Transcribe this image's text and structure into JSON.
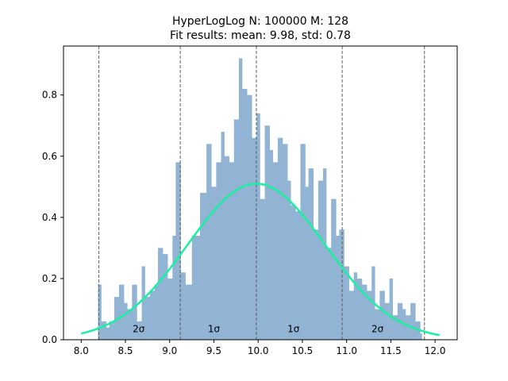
{
  "chart_data": {
    "type": "histogram",
    "title": "HyperLogLog N: 100000 M: 128",
    "subtitle": "Fit results: mean: 9.98,  std: 0.78",
    "xlabel": "",
    "ylabel": "",
    "xlim": [
      7.8,
      12.25
    ],
    "ylim": [
      0,
      0.96
    ],
    "xticks": [
      8.0,
      8.5,
      9.0,
      9.5,
      10.0,
      10.5,
      11.0,
      11.5,
      12.0
    ],
    "yticks": [
      0.0,
      0.2,
      0.4,
      0.6,
      0.8
    ],
    "grid": false,
    "legend": "none",
    "bins": {
      "start": 8.19,
      "end": 11.85,
      "count": 200
    },
    "histogram_heights_sampled": [
      [
        8.2,
        0.18
      ],
      [
        8.25,
        0.06
      ],
      [
        8.3,
        0.04
      ],
      [
        8.35,
        0.06
      ],
      [
        8.4,
        0.14
      ],
      [
        8.45,
        0.18
      ],
      [
        8.5,
        0.12
      ],
      [
        8.55,
        0.1
      ],
      [
        8.6,
        0.18
      ],
      [
        8.65,
        0.06
      ],
      [
        8.7,
        0.24
      ],
      [
        8.75,
        0.14
      ],
      [
        8.8,
        0.16
      ],
      [
        8.85,
        0.18
      ],
      [
        8.9,
        0.3
      ],
      [
        8.95,
        0.28
      ],
      [
        9.0,
        0.2
      ],
      [
        9.05,
        0.34
      ],
      [
        9.1,
        0.58
      ],
      [
        9.15,
        0.22
      ],
      [
        9.2,
        0.18
      ],
      [
        9.3,
        0.34
      ],
      [
        9.4,
        0.48
      ],
      [
        9.45,
        0.64
      ],
      [
        9.5,
        0.5
      ],
      [
        9.55,
        0.58
      ],
      [
        9.6,
        0.68
      ],
      [
        9.65,
        0.6
      ],
      [
        9.7,
        0.58
      ],
      [
        9.75,
        0.72
      ],
      [
        9.8,
        0.92
      ],
      [
        9.85,
        0.82
      ],
      [
        9.9,
        0.8
      ],
      [
        9.95,
        0.66
      ],
      [
        10.0,
        0.74
      ],
      [
        10.05,
        0.46
      ],
      [
        10.1,
        0.7
      ],
      [
        10.15,
        0.62
      ],
      [
        10.2,
        0.58
      ],
      [
        10.25,
        0.66
      ],
      [
        10.3,
        0.64
      ],
      [
        10.35,
        0.52
      ],
      [
        10.4,
        0.44
      ],
      [
        10.45,
        0.42
      ],
      [
        10.5,
        0.64
      ],
      [
        10.55,
        0.5
      ],
      [
        10.6,
        0.56
      ],
      [
        10.65,
        0.36
      ],
      [
        10.7,
        0.52
      ],
      [
        10.75,
        0.56
      ],
      [
        10.8,
        0.3
      ],
      [
        10.85,
        0.46
      ],
      [
        10.9,
        0.34
      ],
      [
        10.95,
        0.36
      ],
      [
        11.0,
        0.24
      ],
      [
        11.05,
        0.16
      ],
      [
        11.1,
        0.22
      ],
      [
        11.15,
        0.2
      ],
      [
        11.2,
        0.18
      ],
      [
        11.25,
        0.16
      ],
      [
        11.3,
        0.24
      ],
      [
        11.35,
        0.1
      ],
      [
        11.4,
        0.16
      ],
      [
        11.45,
        0.12
      ],
      [
        11.5,
        0.2
      ],
      [
        11.55,
        0.08
      ],
      [
        11.6,
        0.12
      ],
      [
        11.65,
        0.1
      ],
      [
        11.7,
        0.08
      ],
      [
        11.75,
        0.12
      ],
      [
        11.8,
        0.06
      ],
      [
        11.85,
        0.02
      ]
    ],
    "fit_curve": {
      "type": "normal_pdf",
      "mean": 9.98,
      "std": 0.78,
      "x_range": [
        8.0,
        12.05
      ],
      "color": "#19f0a0"
    },
    "vlines": [
      8.2,
      9.12,
      9.98,
      10.95,
      11.88
    ],
    "band_labels": [
      {
        "text": "2σ",
        "x": 8.65,
        "y": 0.025
      },
      {
        "text": "1σ",
        "x": 9.5,
        "y": 0.025
      },
      {
        "text": "1σ",
        "x": 10.4,
        "y": 0.025
      },
      {
        "text": "2σ",
        "x": 11.35,
        "y": 0.025
      }
    ],
    "bar_color": "#92b4d4",
    "vline_color": "#606060"
  }
}
